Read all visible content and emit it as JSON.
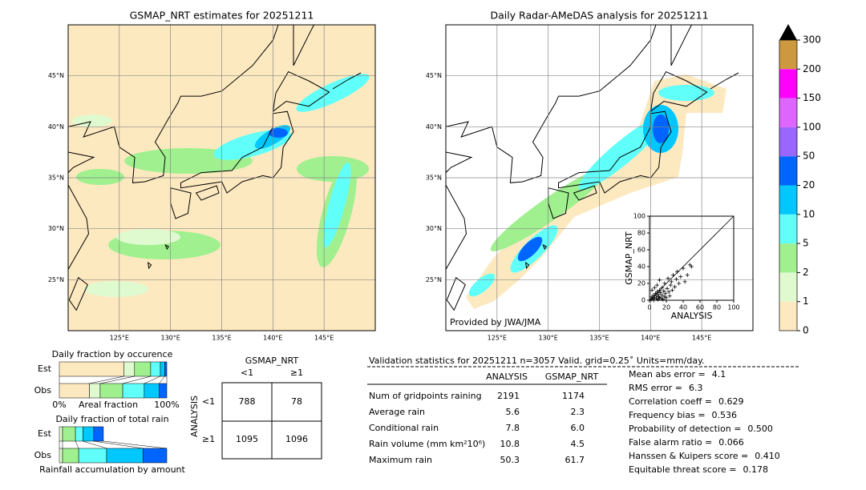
{
  "maps": [
    {
      "title": "GSMAP_NRT estimates for 20251211",
      "xlim": [
        120,
        150
      ],
      "ylim": [
        20,
        50
      ],
      "xticks": [
        {
          "value": 125,
          "label": "125°E"
        },
        {
          "value": 130,
          "label": "130°E"
        },
        {
          "value": 135,
          "label": "135°E"
        },
        {
          "value": 140,
          "label": "140°E"
        },
        {
          "value": 145,
          "label": "145°E"
        }
      ],
      "yticks": [
        {
          "value": 25,
          "label": "25°N"
        },
        {
          "value": 30,
          "label": "30°N"
        },
        {
          "value": 35,
          "label": "35°N"
        },
        {
          "value": 40,
          "label": "40°N"
        },
        {
          "value": 45,
          "label": "45°N"
        }
      ]
    },
    {
      "title": "Daily Radar-AMeDAS analysis for 20251211",
      "credit": "Provided by JWA/JMA",
      "xlim": [
        120,
        150
      ],
      "ylim": [
        20,
        50
      ],
      "xticks": [
        {
          "value": 125,
          "label": "125°E"
        },
        {
          "value": 130,
          "label": "130°E"
        },
        {
          "value": 135,
          "label": "135°E"
        },
        {
          "value": 140,
          "label": "140°E"
        },
        {
          "value": 145,
          "label": "145°E"
        }
      ],
      "yticks": [
        {
          "value": 25,
          "label": "25°N"
        },
        {
          "value": 30,
          "label": "30°N"
        },
        {
          "value": 35,
          "label": "35°N"
        },
        {
          "value": 40,
          "label": "40°N"
        },
        {
          "value": 45,
          "label": "45°N"
        }
      ]
    }
  ],
  "colorbar": {
    "levels": [
      0,
      1,
      2,
      5,
      10,
      20,
      50,
      100,
      150,
      200,
      300
    ],
    "colors": [
      "#fde9c0",
      "#e0fad0",
      "#a0f090",
      "#60fffa",
      "#00c8ff",
      "#0064ff",
      "#9966ff",
      "#dd66ff",
      "#ff00ff",
      "#cc9940"
    ]
  },
  "chart_data": [
    {
      "type": "scatter",
      "xlabel": "ANALYSIS",
      "ylabel": "GSMAP_NRT",
      "xlim": [
        0,
        100
      ],
      "ylim": [
        0,
        100
      ],
      "xticks": [
        0,
        20,
        40,
        60,
        80,
        100
      ],
      "yticks": [
        0,
        20,
        40,
        60,
        80,
        100
      ],
      "color": "#000000",
      "x": [
        2,
        3,
        4,
        5,
        5,
        6,
        7,
        8,
        8,
        9,
        10,
        10,
        11,
        12,
        12,
        13,
        14,
        15,
        15,
        16,
        17,
        18,
        18,
        19,
        20,
        21,
        22,
        23,
        24,
        25,
        26,
        27,
        28,
        30,
        32,
        33,
        35,
        37,
        40,
        42,
        45,
        48,
        50,
        3,
        6,
        9,
        12
      ],
      "y": [
        1,
        4,
        2,
        6,
        0,
        3,
        8,
        2,
        5,
        10,
        1,
        7,
        4,
        12,
        3,
        9,
        2,
        15,
        6,
        1,
        11,
        4,
        20,
        8,
        3,
        14,
        26,
        10,
        5,
        18,
        22,
        12,
        30,
        16,
        25,
        34,
        20,
        28,
        38,
        22,
        30,
        42,
        40,
        12,
        15,
        18,
        24
      ]
    },
    {
      "type": "stacked-bar",
      "title": "Daily fraction by occurence",
      "xlabel": "Areal fraction",
      "categories": [
        "Est",
        "Obs"
      ],
      "xlim": [
        0,
        100
      ],
      "xticks": [
        {
          "value": 0,
          "label": "0%"
        },
        {
          "value": 100,
          "label": "100%"
        }
      ],
      "series": [
        {
          "color": "#fde9c0",
          "values": [
            60,
            28
          ]
        },
        {
          "color": "#e0fad0",
          "values": [
            10,
            10
          ]
        },
        {
          "color": "#a0f090",
          "values": [
            15,
            21
          ]
        },
        {
          "color": "#60fffa",
          "values": [
            9,
            20
          ]
        },
        {
          "color": "#00c8ff",
          "values": [
            4,
            14
          ]
        },
        {
          "color": "#0064ff",
          "values": [
            2,
            7
          ]
        }
      ]
    },
    {
      "type": "stacked-bar",
      "title": "Daily fraction of total rain",
      "xlabel": "Rainfall accumulation by amount",
      "categories": [
        "Est",
        "Obs"
      ],
      "xlim": [
        0,
        100
      ],
      "series": [
        {
          "color": "#e0fad0",
          "values": [
            3,
            3
          ]
        },
        {
          "color": "#a0f090",
          "values": [
            12,
            15
          ]
        },
        {
          "color": "#60fffa",
          "values": [
            7,
            26
          ]
        },
        {
          "color": "#00c8ff",
          "values": [
            10,
            34
          ]
        },
        {
          "color": "#0064ff",
          "values": [
            9,
            22
          ]
        }
      ]
    }
  ],
  "contingency": {
    "title": "GSMAP_NRT",
    "col_labels": [
      "<1",
      "≥1"
    ],
    "row_title": "ANALYSIS",
    "row_labels": [
      "<1",
      "≥1"
    ],
    "cells": [
      [
        "788",
        "78"
      ],
      [
        "1095",
        "1096"
      ]
    ]
  },
  "stats": {
    "header": "Validation statistics for 20251211  n=3057 Valid. grid=0.25˚ Units=mm/day.",
    "columns": [
      "ANALYSIS",
      "GSMAP_NRT"
    ],
    "rows": [
      {
        "label": "Num of gridpoints raining",
        "values": [
          "2191",
          "1174"
        ]
      },
      {
        "label": "Average rain",
        "values": [
          "5.6",
          "2.3"
        ]
      },
      {
        "label": "Conditional rain",
        "values": [
          "7.8",
          "6.0"
        ]
      },
      {
        "label": "Rain volume (mm km²10⁶)",
        "values": [
          "10.8",
          "4.5"
        ]
      },
      {
        "label": "Maximum rain",
        "values": [
          "50.3",
          "61.7"
        ]
      }
    ],
    "scores": [
      {
        "label": "Mean abs error =",
        "value": "4.1"
      },
      {
        "label": "RMS error =",
        "value": "6.3"
      },
      {
        "label": "Correlation coeff =",
        "value": "0.629"
      },
      {
        "label": "Frequency bias =",
        "value": "0.536"
      },
      {
        "label": "Probability of detection =",
        "value": "0.500"
      },
      {
        "label": "False alarm ratio =",
        "value": "0.066"
      },
      {
        "label": "Hanssen & Kuipers score =",
        "value": "0.410"
      },
      {
        "label": "Equitable threat score =",
        "value": "0.178"
      }
    ]
  }
}
